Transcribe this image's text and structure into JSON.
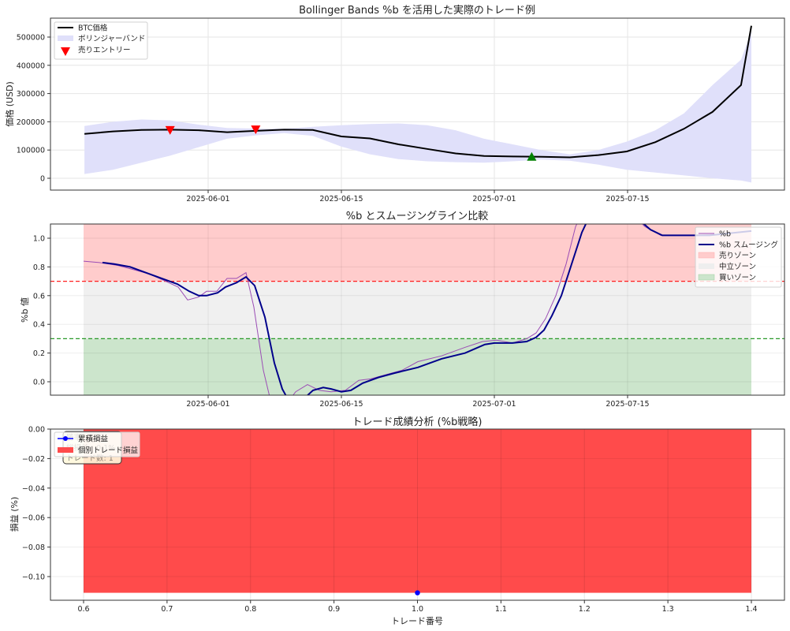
{
  "chart_data": [
    {
      "type": "line",
      "title": "Bollinger Bands %b を活用した実際のトレード例",
      "xlabel": "",
      "ylabel": "価格 (USD)",
      "ylim": [
        -40000,
        560000
      ],
      "yticks": [
        0,
        100000,
        200000,
        300000,
        400000,
        500000
      ],
      "xticks": [
        "2025-06-01",
        "2025-06-15",
        "2025-07-01",
        "2025-07-15"
      ],
      "grid": true,
      "legend_position": "upper left",
      "legend": [
        "BTC価格",
        "ボリンジャーバンド",
        "売りエントリー"
      ],
      "x_dates": [
        "05-19",
        "05-22",
        "05-25",
        "05-28",
        "05-31",
        "06-03",
        "06-06",
        "06-09",
        "06-12",
        "06-15",
        "06-18",
        "06-21",
        "06-24",
        "06-27",
        "06-30",
        "07-03",
        "07-06",
        "07-09",
        "07-12",
        "07-15",
        "07-18",
        "07-21",
        "07-24",
        "07-27",
        "07-28"
      ],
      "series": [
        {
          "name": "BTC価格",
          "color": "#000000",
          "values": [
            157000,
            166000,
            171000,
            172000,
            170000,
            163000,
            168000,
            172000,
            171000,
            148000,
            141000,
            120000,
            104000,
            88000,
            79000,
            77000,
            76000,
            74000,
            82000,
            95000,
            128000,
            175000,
            235000,
            330000,
            540000
          ]
        },
        {
          "name": "band_upper",
          "color": "#e0e0fa",
          "values": [
            185000,
            200000,
            208000,
            205000,
            190000,
            178000,
            176000,
            176000,
            182000,
            188000,
            192000,
            194000,
            188000,
            170000,
            140000,
            120000,
            100000,
            85000,
            100000,
            130000,
            170000,
            230000,
            330000,
            420000,
            520000
          ]
        },
        {
          "name": "band_lower",
          "color": "#e0e0fa",
          "values": [
            15000,
            30000,
            55000,
            80000,
            110000,
            140000,
            152000,
            160000,
            150000,
            112000,
            85000,
            68000,
            60000,
            57000,
            55000,
            60000,
            66000,
            62000,
            48000,
            30000,
            20000,
            10000,
            0,
            -8000,
            -15000
          ]
        }
      ],
      "markers": [
        {
          "label": "売りエントリー",
          "type": "sell",
          "date": "05-28",
          "value": 168000,
          "color": "#ff0000"
        },
        {
          "label": "売りエントリー",
          "type": "sell",
          "date": "06-06",
          "value": 170000,
          "color": "#ff0000"
        },
        {
          "label": "買いエントリー",
          "type": "buy",
          "date": "07-05",
          "value": 76000,
          "color": "#008000"
        }
      ]
    },
    {
      "type": "line",
      "title": "%b とスムージングライン比較",
      "xlabel": "",
      "ylabel": "%b 値",
      "ylim": [
        -0.1,
        1.1
      ],
      "yticks": [
        0.0,
        0.2,
        0.4,
        0.6,
        0.8,
        1.0
      ],
      "xticks": [
        "2025-06-01",
        "2025-06-15",
        "2025-07-01",
        "2025-07-15"
      ],
      "grid": true,
      "legend_position": "upper right",
      "legend": [
        "%b",
        "%b スムージング",
        "売りゾーン",
        "中立ゾーン",
        "買いゾーン"
      ],
      "zones": [
        {
          "name": "売りゾーン",
          "from": 0.7,
          "to": 1.1,
          "color": "#ffcccc"
        },
        {
          "name": "中立ゾーン",
          "from": 0.3,
          "to": 0.7,
          "color": "#f0f0f0"
        },
        {
          "name": "買いゾーン",
          "from": -0.1,
          "to": 0.3,
          "color": "#cce5cc"
        }
      ],
      "threshold_lines": [
        {
          "value": 0.7,
          "color": "#ff2020"
        },
        {
          "value": 0.3,
          "color": "#2a9a2a"
        }
      ],
      "series": [
        {
          "name": "%b",
          "color": "#9b4db5",
          "points": [
            [
              106,
              0.84
            ],
            [
              126,
              0.83
            ],
            [
              150,
              0.81
            ],
            [
              170,
              0.78
            ],
            [
              190,
              0.75
            ],
            [
              210,
              0.7
            ],
            [
              226,
              0.66
            ],
            [
              238,
              0.57
            ],
            [
              252,
              0.59
            ],
            [
              262,
              0.63
            ],
            [
              275,
              0.63
            ],
            [
              288,
              0.72
            ],
            [
              300,
              0.72
            ],
            [
              312,
              0.76
            ],
            [
              322,
              0.52
            ],
            [
              334,
              0.08
            ],
            [
              344,
              -0.15
            ],
            [
              360,
              -0.18
            ],
            [
              375,
              -0.07
            ],
            [
              390,
              -0.02
            ],
            [
              405,
              -0.06
            ],
            [
              420,
              -0.07
            ],
            [
              438,
              -0.06
            ],
            [
              455,
              0.01
            ],
            [
              470,
              0.02
            ],
            [
              490,
              0.05
            ],
            [
              510,
              0.08
            ],
            [
              530,
              0.14
            ],
            [
              560,
              0.18
            ],
            [
              590,
              0.24
            ],
            [
              612,
              0.28
            ],
            [
              630,
              0.29
            ],
            [
              650,
              0.27
            ],
            [
              668,
              0.3
            ],
            [
              680,
              0.34
            ],
            [
              692,
              0.44
            ],
            [
              705,
              0.6
            ],
            [
              718,
              0.82
            ],
            [
              730,
              1.08
            ],
            [
              745,
              1.25
            ],
            [
              770,
              1.3
            ],
            [
              800,
              1.18
            ],
            [
              818,
              1.08
            ],
            [
              838,
              1.02
            ],
            [
              852,
              1.02
            ],
            [
              880,
              1.02
            ],
            [
              920,
              1.03
            ],
            [
              953,
              1.05
            ]
          ]
        },
        {
          "name": "%b スムージング",
          "color": "#00008b",
          "points": [
            [
              130,
              0.83
            ],
            [
              145,
              0.82
            ],
            [
              165,
              0.8
            ],
            [
              185,
              0.76
            ],
            [
              205,
              0.72
            ],
            [
              225,
              0.68
            ],
            [
              240,
              0.63
            ],
            [
              252,
              0.6
            ],
            [
              262,
              0.6
            ],
            [
              276,
              0.62
            ],
            [
              286,
              0.66
            ],
            [
              300,
              0.69
            ],
            [
              312,
              0.73
            ],
            [
              323,
              0.67
            ],
            [
              336,
              0.45
            ],
            [
              348,
              0.13
            ],
            [
              358,
              -0.05
            ],
            [
              368,
              -0.15
            ],
            [
              385,
              -0.12
            ],
            [
              397,
              -0.06
            ],
            [
              410,
              -0.04
            ],
            [
              420,
              -0.05
            ],
            [
              433,
              -0.07
            ],
            [
              445,
              -0.06
            ],
            [
              460,
              -0.01
            ],
            [
              480,
              0.03
            ],
            [
              500,
              0.06
            ],
            [
              530,
              0.1
            ],
            [
              560,
              0.16
            ],
            [
              590,
              0.2
            ],
            [
              615,
              0.26
            ],
            [
              627,
              0.27
            ],
            [
              650,
              0.27
            ],
            [
              668,
              0.28
            ],
            [
              680,
              0.31
            ],
            [
              690,
              0.36
            ],
            [
              700,
              0.46
            ],
            [
              712,
              0.6
            ],
            [
              725,
              0.82
            ],
            [
              738,
              1.04
            ],
            [
              750,
              1.18
            ],
            [
              780,
              1.25
            ],
            [
              810,
              1.13
            ],
            [
              825,
              1.06
            ],
            [
              840,
              1.02
            ],
            [
              860,
              1.02
            ],
            [
              900,
              1.02
            ],
            [
              953,
              1.05
            ]
          ]
        }
      ]
    },
    {
      "type": "bar",
      "title": "トレード成績分析 (%b戦略)",
      "xlabel": "トレード番号",
      "ylabel": "損益 (%)",
      "ylim": [
        -0.116,
        0.0
      ],
      "xlim": [
        0.56,
        1.44
      ],
      "yticks": [
        0.0,
        -0.02,
        -0.04,
        -0.06,
        -0.08,
        -0.1
      ],
      "xticks": [
        0.6,
        0.7,
        0.8,
        0.9,
        1.0,
        1.1,
        1.2,
        1.3,
        1.4
      ],
      "grid": true,
      "legend_position": "upper left",
      "legend": [
        "累積損益",
        "個別トレード損益"
      ],
      "categories": [
        1
      ],
      "series": [
        {
          "name": "個別トレード損益",
          "type": "bar",
          "color": "#ff4b4b",
          "values": [
            -0.111
          ],
          "bar_width": 0.8
        },
        {
          "name": "累積損益",
          "type": "line",
          "color": "#0000ff",
          "values": [
            -0.111
          ]
        }
      ],
      "annotation": {
        "lines": [
          "勝率: 0.0%",
          "総損益: -0.1%",
          "トレード数: 1"
        ]
      }
    }
  ]
}
